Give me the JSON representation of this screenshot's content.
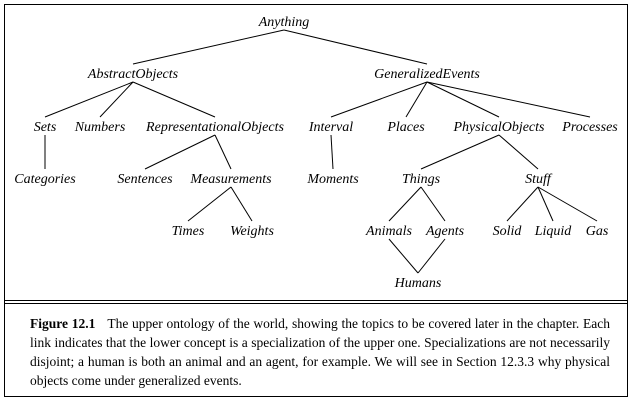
{
  "figure": {
    "label": "Figure 12.1",
    "caption": "The upper ontology of the world, showing the topics to be covered later in the chapter. Each link indicates that the lower concept is a specialization of the upper one. Specializations are not necessarily disjoint; a human is both an animal and an agent, for example. We will see in Section 12.3.3 why physical objects come under generalized events."
  },
  "nodes": [
    {
      "id": "anything",
      "label": "Anything"
    },
    {
      "id": "abstractobjects",
      "label": "AbstractObjects"
    },
    {
      "id": "generalizedevents",
      "label": "GeneralizedEvents"
    },
    {
      "id": "sets",
      "label": "Sets"
    },
    {
      "id": "numbers",
      "label": "Numbers"
    },
    {
      "id": "representationalobjects",
      "label": "RepresentationalObjects"
    },
    {
      "id": "interval",
      "label": "Interval"
    },
    {
      "id": "places",
      "label": "Places"
    },
    {
      "id": "physicalobjects",
      "label": "PhysicalObjects"
    },
    {
      "id": "processes",
      "label": "Processes"
    },
    {
      "id": "categories",
      "label": "Categories"
    },
    {
      "id": "sentences",
      "label": "Sentences"
    },
    {
      "id": "measurements",
      "label": "Measurements"
    },
    {
      "id": "moments",
      "label": "Moments"
    },
    {
      "id": "things",
      "label": "Things"
    },
    {
      "id": "stuff",
      "label": "Stuff"
    },
    {
      "id": "times",
      "label": "Times"
    },
    {
      "id": "weights",
      "label": "Weights"
    },
    {
      "id": "animals",
      "label": "Animals"
    },
    {
      "id": "agents",
      "label": "Agents"
    },
    {
      "id": "solid",
      "label": "Solid"
    },
    {
      "id": "liquid",
      "label": "Liquid"
    },
    {
      "id": "gas",
      "label": "Gas"
    },
    {
      "id": "humans",
      "label": "Humans"
    }
  ],
  "edges": [
    [
      "anything",
      "abstractobjects"
    ],
    [
      "anything",
      "generalizedevents"
    ],
    [
      "abstractobjects",
      "sets"
    ],
    [
      "abstractobjects",
      "numbers"
    ],
    [
      "abstractobjects",
      "representationalobjects"
    ],
    [
      "generalizedevents",
      "interval"
    ],
    [
      "generalizedevents",
      "places"
    ],
    [
      "generalizedevents",
      "physicalobjects"
    ],
    [
      "generalizedevents",
      "processes"
    ],
    [
      "sets",
      "categories"
    ],
    [
      "representationalobjects",
      "sentences"
    ],
    [
      "representationalobjects",
      "measurements"
    ],
    [
      "interval",
      "moments"
    ],
    [
      "physicalobjects",
      "things"
    ],
    [
      "physicalobjects",
      "stuff"
    ],
    [
      "measurements",
      "times"
    ],
    [
      "measurements",
      "weights"
    ],
    [
      "things",
      "animals"
    ],
    [
      "things",
      "agents"
    ],
    [
      "stuff",
      "solid"
    ],
    [
      "stuff",
      "liquid"
    ],
    [
      "stuff",
      "gas"
    ],
    [
      "animals",
      "humans"
    ],
    [
      "agents",
      "humans"
    ]
  ]
}
